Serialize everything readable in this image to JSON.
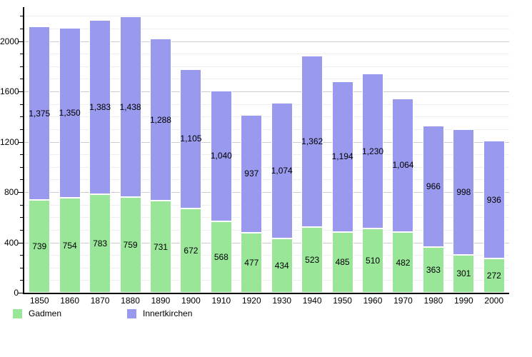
{
  "chart_data": {
    "type": "bar",
    "stacked": true,
    "title": "",
    "xlabel": "",
    "ylabel": "",
    "categories": [
      "1850",
      "1860",
      "1870",
      "1880",
      "1890",
      "1900",
      "1910",
      "1920",
      "1930",
      "1940",
      "1950",
      "1960",
      "1970",
      "1980",
      "1990",
      "2000"
    ],
    "series": [
      {
        "name": "Gadmen",
        "color": "#99e699",
        "values": [
          739,
          754,
          783,
          759,
          731,
          672,
          568,
          477,
          434,
          523,
          485,
          510,
          482,
          363,
          301,
          272
        ]
      },
      {
        "name": "Innertkirchen",
        "color": "#9999ee",
        "values": [
          1375,
          1350,
          1383,
          1438,
          1288,
          1105,
          1040,
          937,
          1074,
          1362,
          1194,
          1230,
          1064,
          966,
          998,
          936
        ]
      }
    ],
    "ylim": [
      0,
      2270
    ],
    "y_ticks": [
      0,
      400,
      800,
      1200,
      1600,
      2000
    ],
    "grid_step": 100,
    "grid_max": 2200,
    "grid": true,
    "legend_position": "bottom-left",
    "value_labels": "centered-in-segment, thousands comma format",
    "colors": {
      "major_gridline": "#cccccc",
      "minor_gridline": "#eeeeee",
      "axis": "#000000",
      "label_text": "#000000"
    }
  }
}
